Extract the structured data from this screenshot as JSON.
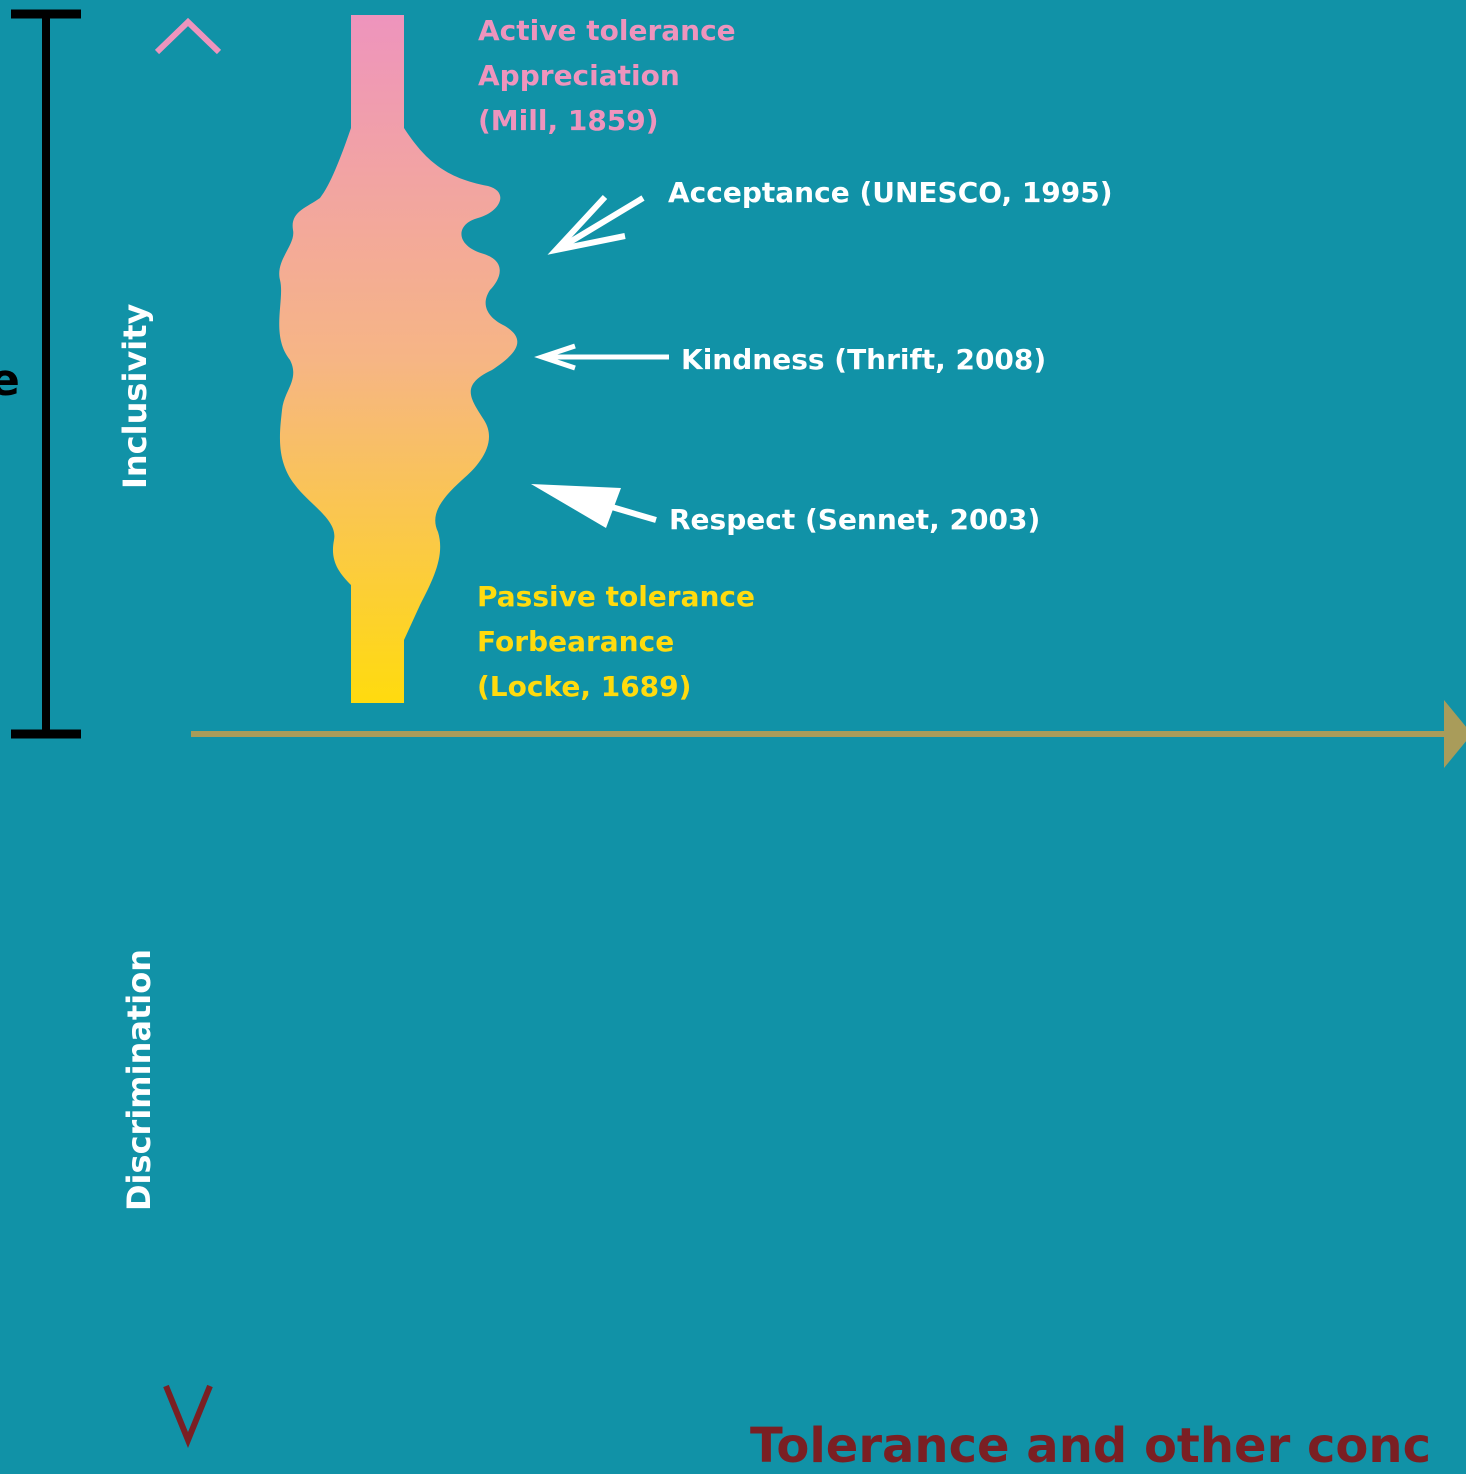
{
  "axis": {
    "up_label": "Inclusivity",
    "down_label": "Discrimination"
  },
  "top_label": {
    "line1": "Active tolerance",
    "line2": "Appreciation",
    "line3": "(Mill, 1859)"
  },
  "bottom_label": {
    "line1": "Passive tolerance",
    "line2": "Forbearance",
    "line3": "(Locke, 1689)"
  },
  "callouts": [
    {
      "text": "Acceptance (UNESCO, 1995)"
    },
    {
      "text": "Kindness (Thrift, 2008)"
    },
    {
      "text": "Respect (Sennet, 2003)"
    }
  ],
  "partial_texts": {
    "left_edge": "e",
    "bottom_title": "Tolerance and other conc"
  },
  "colors": {
    "background": "#1192a7",
    "pink": "#ee94bd",
    "yellow": "#ffdb0e",
    "olive_axis": "#a99c5a",
    "dark_red": "#7a1f23",
    "bracket": "#000000"
  }
}
